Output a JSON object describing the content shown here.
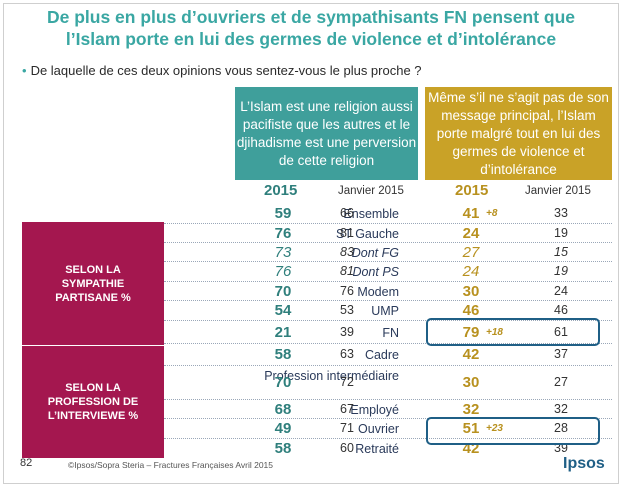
{
  "title": {
    "line1": "De plus en plus d’ouvriers et de sympathisants FN pensent que",
    "line2": "l’Islam porte en lui des germes de violence et d’intolérance"
  },
  "question": "De laquelle de ces deux opinions vous sentez-vous le plus proche ?",
  "headers": {
    "opinion_a": "L’Islam est une religion aussi pacifiste que les autres et le djihadisme est une perversion de cette religion",
    "opinion_b": "Même s’il ne s’agit pas de son message principal, l’Islam porte malgré tout en lui des germes de violence et d’intolérance",
    "year_a": "2015",
    "jan_a": "Janvier 2015",
    "year_b": "2015",
    "jan_b": "Janvier 2015"
  },
  "bands": {
    "sympathie": "SELON LA SYMPATHIE PARTISANE %",
    "profession": "SELON LA PROFESSION DE L’INTERVIEWE %"
  },
  "rows": [
    {
      "label": "Ensemble",
      "a": "59",
      "a_jan": "66",
      "b": "41",
      "delta": "+8",
      "b_jan": "33"
    },
    {
      "label": "ST Gauche",
      "a": "76",
      "a_jan": "81",
      "b": "24",
      "delta": "",
      "b_jan": "19"
    },
    {
      "label": "Dont FG",
      "a": "73",
      "a_jan": "83",
      "b": "27",
      "delta": "",
      "b_jan": "15"
    },
    {
      "label": "Dont PS",
      "a": "76",
      "a_jan": "81",
      "b": "24",
      "delta": "",
      "b_jan": "19"
    },
    {
      "label": "Modem",
      "a": "70",
      "a_jan": "76",
      "b": "30",
      "delta": "",
      "b_jan": "24"
    },
    {
      "label": "UMP",
      "a": "54",
      "a_jan": "53",
      "b": "46",
      "delta": "",
      "b_jan": "46"
    },
    {
      "label": "FN",
      "a": "21",
      "a_jan": "39",
      "b": "79",
      "delta": "+18",
      "b_jan": "61"
    },
    {
      "label": "Cadre",
      "a": "58",
      "a_jan": "63",
      "b": "42",
      "delta": "",
      "b_jan": "37"
    },
    {
      "label": "Profession intermédiaire",
      "a": "70",
      "a_jan": "72",
      "b": "30",
      "delta": "",
      "b_jan": "27"
    },
    {
      "label": "Employé",
      "a": "68",
      "a_jan": "67",
      "b": "32",
      "delta": "",
      "b_jan": "32"
    },
    {
      "label": "Ouvrier",
      "a": "49",
      "a_jan": "71",
      "b": "51",
      "delta": "+23",
      "b_jan": "28"
    },
    {
      "label": "Retraité",
      "a": "58",
      "a_jan": "60",
      "b": "42",
      "delta": "",
      "b_jan": "39"
    }
  ],
  "footer": {
    "page_number": "82",
    "source": "©Ipsos/Sopra Steria –  Fractures Françaises  Avril 2015",
    "logo": "Ipsos"
  },
  "colors": {
    "teal": "#3f9f9b",
    "gold": "#c9a227",
    "band": "#a4174f",
    "highlight": "#1f5f86"
  }
}
